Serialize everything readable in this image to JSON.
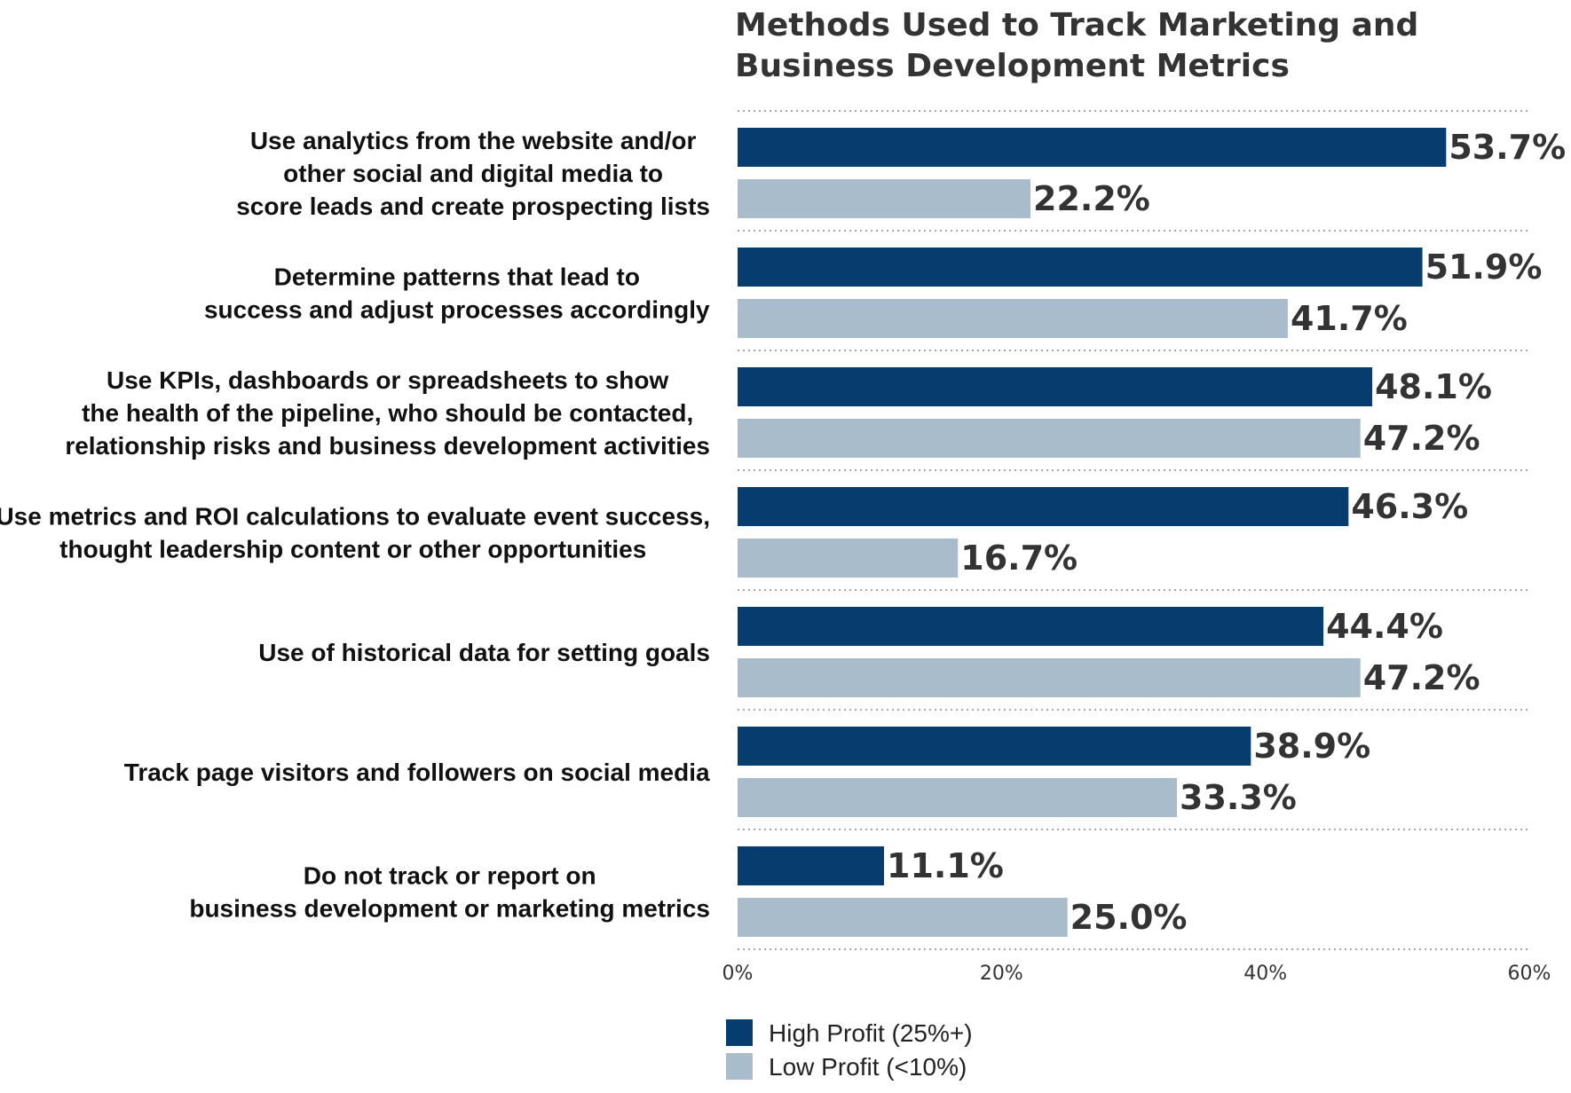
{
  "chart_data": {
    "type": "bar",
    "orientation": "horizontal",
    "title_lines": [
      "Methods Used to Track Marketing and",
      "Business Development Metrics"
    ],
    "categories": [
      [
        "Use analytics from the website and/or",
        "other social and digital media to",
        "score leads and create prospecting lists"
      ],
      [
        "Determine patterns that lead to",
        "success and adjust processes accordingly"
      ],
      [
        "Use KPIs, dashboards or spreadsheets to show",
        "the health of the pipeline, who should be contacted,",
        "relationship risks and business development activities"
      ],
      [
        "Use metrics and ROI calculations to evaluate event success,",
        "thought leadership content or other opportunities"
      ],
      [
        "Use of historical data for setting goals"
      ],
      [
        "Track page visitors and followers on social media"
      ],
      [
        "Do not track or report on",
        "business development or marketing metrics"
      ]
    ],
    "series": [
      {
        "name": "High Profit (25%+)",
        "color": "#053e6e",
        "values": [
          53.7,
          51.9,
          48.1,
          46.3,
          44.4,
          38.9,
          11.1
        ],
        "labels": [
          "53.7%",
          "51.9%",
          "48.1%",
          "46.3%",
          "44.4%",
          "38.9%",
          "11.1%"
        ]
      },
      {
        "name": "Low Profit (<10%)",
        "color": "#a8bccb",
        "values": [
          22.2,
          41.7,
          47.2,
          16.7,
          47.2,
          33.3,
          25.0
        ],
        "labels": [
          "22.2%",
          "41.7%",
          "47.2%",
          "16.7%",
          "47.2%",
          "33.3%",
          "25.0%"
        ]
      }
    ],
    "xlim": [
      0,
      60
    ],
    "xticks": [
      0,
      20,
      40,
      60
    ],
    "xtick_labels": [
      "0%",
      "20%",
      "40%",
      "60%"
    ],
    "grid": true,
    "legend_position": "bottom"
  }
}
